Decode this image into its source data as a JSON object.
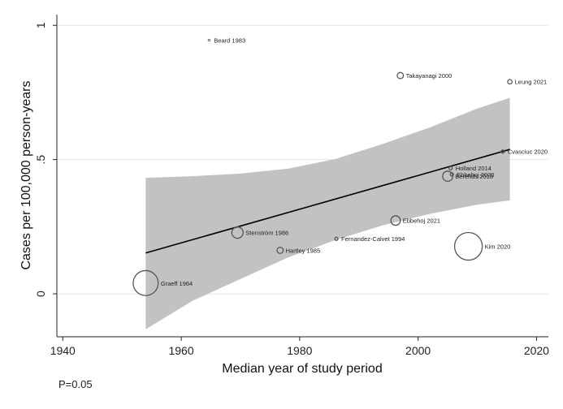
{
  "chart_data": {
    "type": "scatter",
    "xlabel": "Median year of study period",
    "ylabel": "Cases per 100,000 person-years",
    "xlim": [
      1939,
      2022
    ],
    "ylim": [
      -0.16,
      1.04
    ],
    "xticks": [
      {
        "value": 1940,
        "label": "1940"
      },
      {
        "value": 1960,
        "label": "1960"
      },
      {
        "value": 1980,
        "label": "1980"
      },
      {
        "value": 2000,
        "label": "2000"
      },
      {
        "value": 2020,
        "label": "2020"
      }
    ],
    "yticks": [
      {
        "value": 0,
        "label": "0"
      },
      {
        "value": 0.5,
        "label": ".5"
      },
      {
        "value": 1,
        "label": "1"
      }
    ],
    "grid": true,
    "points": [
      {
        "label": "Beard 1983",
        "x": 1964.7,
        "y": 0.945,
        "weight": 0.3
      },
      {
        "label": "Takayanagi 2000",
        "x": 1997.0,
        "y": 0.813,
        "weight": 3
      },
      {
        "label": "Leung 2021",
        "x": 2015.5,
        "y": 0.79,
        "weight": 1.5
      },
      {
        "label": "Cvasciuc 2020",
        "x": 2014.3,
        "y": 0.53,
        "weight": 0.8
      },
      {
        "label": "Holland 2014",
        "x": 2005.5,
        "y": 0.468,
        "weight": 0.8
      },
      {
        "label": "Ebbehoj 2020",
        "x": 2005.7,
        "y": 0.445,
        "weight": 0.8
      },
      {
        "label": "Berends 2018",
        "x": 2005.0,
        "y": 0.438,
        "weight": 8
      },
      {
        "label": "Ebbehoj 2021",
        "x": 1996.2,
        "y": 0.273,
        "weight": 7
      },
      {
        "label": "Stenström 1986",
        "x": 1969.5,
        "y": 0.228,
        "weight": 10
      },
      {
        "label": "Fernandez-Calvet 1994",
        "x": 1986.2,
        "y": 0.205,
        "weight": 0.8
      },
      {
        "label": "Hartley 1985",
        "x": 1976.7,
        "y": 0.162,
        "weight": 3
      },
      {
        "label": "Kim 2020",
        "x": 2008.5,
        "y": 0.177,
        "weight": 60
      },
      {
        "label": "Graeff 1964",
        "x": 1954.0,
        "y": 0.04,
        "weight": 49
      }
    ],
    "fit_line": {
      "x": [
        1954,
        2015.5
      ],
      "y": [
        0.152,
        0.538
      ]
    },
    "confidence_band": {
      "x": [
        1954,
        1962,
        1970,
        1978,
        1986,
        1994,
        2002,
        2010,
        2015.5
      ],
      "upper": [
        0.432,
        0.438,
        0.448,
        0.466,
        0.502,
        0.558,
        0.62,
        0.69,
        0.73
      ],
      "lower": [
        -0.132,
        -0.025,
        0.055,
        0.135,
        0.2,
        0.255,
        0.298,
        0.332,
        0.348
      ]
    },
    "annotation": "P=0.05"
  }
}
